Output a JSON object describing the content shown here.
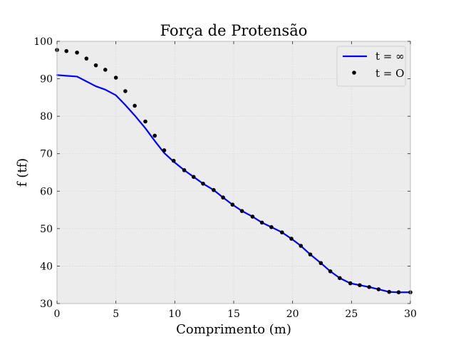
{
  "chart_data": {
    "type": "line",
    "title": "Força de Protensão",
    "xlabel": "Comprimento (m)",
    "ylabel": "f (tf)",
    "xlim": [
      0,
      30
    ],
    "ylim": [
      30,
      100
    ],
    "xticks": [
      0,
      5,
      10,
      15,
      20,
      25,
      30
    ],
    "yticks": [
      30,
      40,
      50,
      60,
      70,
      80,
      90,
      100
    ],
    "grid": true,
    "legend_position": "top-right",
    "series": [
      {
        "name": "t = ∞",
        "style": "line",
        "color": "#0000ff",
        "x": [
          0,
          0.8,
          1.7,
          2.5,
          3.3,
          4.1,
          5.0,
          5.8,
          6.6,
          7.5,
          8.3,
          9.1,
          9.9,
          10.8,
          11.6,
          12.4,
          13.3,
          14.1,
          14.9,
          15.7,
          16.6,
          17.4,
          18.2,
          19.1,
          19.9,
          20.7,
          21.5,
          22.4,
          23.2,
          24.0,
          24.9,
          25.7,
          26.5,
          27.3,
          28.2,
          29.0,
          30.0
        ],
        "y": [
          91.0,
          90.8,
          90.6,
          89.3,
          88.0,
          87.1,
          85.6,
          83.0,
          80.2,
          76.8,
          73.4,
          70.2,
          67.9,
          65.6,
          63.8,
          62.0,
          60.3,
          58.3,
          56.4,
          54.7,
          53.2,
          51.6,
          50.4,
          49.0,
          47.3,
          45.4,
          43.1,
          40.8,
          38.6,
          36.8,
          35.4,
          34.9,
          34.4,
          33.8,
          33.1,
          33.0,
          33.0
        ]
      },
      {
        "name": "t = O",
        "style": "scatter",
        "color": "#000000",
        "x": [
          0,
          0.8,
          1.7,
          2.5,
          3.3,
          4.1,
          5.0,
          5.8,
          6.6,
          7.5,
          8.3,
          9.1,
          9.9,
          10.8,
          11.6,
          12.4,
          13.3,
          14.1,
          14.9,
          15.7,
          16.6,
          17.4,
          18.2,
          19.1,
          19.9,
          20.7,
          21.5,
          22.4,
          23.2,
          24.0,
          24.9,
          25.7,
          26.5,
          27.3,
          28.2,
          29.0,
          30.0
        ],
        "y": [
          97.7,
          97.4,
          97.0,
          95.4,
          93.6,
          92.4,
          90.3,
          86.7,
          82.8,
          78.6,
          74.8,
          70.9,
          68.1,
          65.6,
          63.8,
          62.0,
          60.3,
          58.3,
          56.4,
          54.7,
          53.2,
          51.6,
          50.4,
          49.0,
          47.3,
          45.4,
          43.1,
          40.8,
          38.6,
          36.8,
          35.4,
          34.9,
          34.4,
          33.8,
          33.1,
          33.0,
          33.0
        ]
      }
    ]
  }
}
